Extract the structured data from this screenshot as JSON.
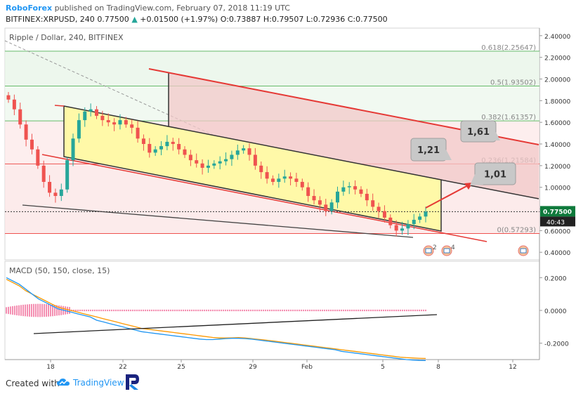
{
  "header": {
    "brand": "RoboForex",
    "published": "published on TradingView.com, February 07, 2018 11:19 UTC",
    "symbol": "BITFINEX:XRPUSD, 240",
    "last": "0.77500",
    "change_arrow": "▲",
    "change": "+0.01500 (+1.97%)",
    "ohlc_o_label": "O:",
    "ohlc_o": "0.73887",
    "ohlc_h_label": "H:",
    "ohlc_h": "0.79507",
    "ohlc_l_label": "L:",
    "ohlc_l": "0.72936",
    "ohlc_c_label": "C:",
    "ohlc_c": "0.77500"
  },
  "colors": {
    "up": "#26a69a",
    "down": "#ef5350",
    "channel_fill": "#fff9a8",
    "channel_outline": "#333333",
    "red_line": "#e53935",
    "fib_green": "#66bb6a",
    "fib_red": "#ef5350",
    "macd_line": "#2196f3",
    "signal_line": "#ff9800",
    "hist": "#e91e63",
    "price_badge": "#0f7a3c",
    "accent": "#2196f3"
  },
  "chart_data": [
    {
      "type": "candlestick",
      "title": "Ripple / Dollar, 240, BITFINEX",
      "ylim": [
        0.33,
        2.47
      ],
      "y_ticks": [
        "2.40000",
        "2.20000",
        "2.00000",
        "1.80000",
        "1.60000",
        "1.40000",
        "1.20000",
        "1.00000",
        "0.80000",
        "0.60000",
        "0.40000"
      ],
      "x_ticks": [
        "18",
        "22",
        "25",
        "29",
        "Feb",
        "5",
        "8",
        "12"
      ],
      "current_price": "0.77500",
      "countdown": "40:43",
      "fib_levels": [
        {
          "label": "0.618(2.25647)",
          "value": 2.25647,
          "color": "green"
        },
        {
          "label": "0.5(1.93502)",
          "value": 1.93502,
          "color": "green"
        },
        {
          "label": "0.382(1.61357)",
          "value": 1.61357,
          "color": "green"
        },
        {
          "label": "0.236(1.21584)",
          "value": 1.21584,
          "color": "red"
        },
        {
          "label": "0(0.57293)",
          "value": 0.57293,
          "color": "red"
        }
      ],
      "targets": [
        "1,61",
        "1,21",
        "1,01"
      ],
      "event_badges": [
        "2",
        "4"
      ],
      "closes": [
        1.81,
        1.72,
        1.58,
        1.44,
        1.35,
        1.2,
        1.05,
        0.95,
        0.92,
        0.98,
        1.25,
        1.45,
        1.62,
        1.7,
        1.72,
        1.66,
        1.62,
        1.6,
        1.58,
        1.62,
        1.58,
        1.55,
        1.45,
        1.4,
        1.32,
        1.35,
        1.38,
        1.42,
        1.4,
        1.35,
        1.3,
        1.25,
        1.22,
        1.18,
        1.2,
        1.22,
        1.24,
        1.26,
        1.3,
        1.34,
        1.36,
        1.3,
        1.2,
        1.14,
        1.08,
        1.05,
        1.08,
        1.1,
        1.08,
        1.05,
        1.0,
        0.92,
        0.88,
        0.84,
        0.78,
        0.86,
        0.96,
        1.0,
        1.01,
        0.98,
        0.94,
        0.88,
        0.82,
        0.78,
        0.72,
        0.65,
        0.6,
        0.62,
        0.66,
        0.7,
        0.73,
        0.775
      ]
    },
    {
      "type": "line",
      "title": "MACD (50, 150, close, 15)",
      "ylim": [
        -0.3,
        0.3
      ],
      "y_ticks": [
        "0.2000",
        "0.0000",
        "-0.2000"
      ],
      "series": [
        {
          "color": "blue",
          "values": [
            0.2,
            0.18,
            0.16,
            0.13,
            0.1,
            0.07,
            0.05,
            0.03,
            0.01,
            0.0,
            -0.01,
            -0.02,
            -0.03,
            -0.04,
            -0.06,
            -0.07,
            -0.08,
            -0.09,
            -0.1,
            -0.11,
            -0.12,
            -0.13,
            -0.135,
            -0.14,
            -0.145,
            -0.15,
            -0.155,
            -0.16,
            -0.165,
            -0.17,
            -0.175,
            -0.178,
            -0.178,
            -0.175,
            -0.172,
            -0.17,
            -0.17,
            -0.172,
            -0.175,
            -0.18,
            -0.185,
            -0.19,
            -0.195,
            -0.2,
            -0.205,
            -0.21,
            -0.215,
            -0.22,
            -0.225,
            -0.23,
            -0.235,
            -0.24,
            -0.25,
            -0.255,
            -0.26,
            -0.265,
            -0.27,
            -0.275,
            -0.28,
            -0.285,
            -0.29,
            -0.295,
            -0.3,
            -0.303,
            -0.305,
            -0.306
          ]
        },
        {
          "color": "orange",
          "values": [
            0.19,
            0.17,
            0.15,
            0.12,
            0.1,
            0.08,
            0.06,
            0.04,
            0.02,
            0.01,
            -0.0,
            -0.01,
            -0.02,
            -0.03,
            -0.04,
            -0.05,
            -0.06,
            -0.07,
            -0.08,
            -0.09,
            -0.1,
            -0.11,
            -0.115,
            -0.12,
            -0.125,
            -0.13,
            -0.135,
            -0.14,
            -0.145,
            -0.15,
            -0.155,
            -0.16,
            -0.165,
            -0.168,
            -0.168,
            -0.167,
            -0.166,
            -0.168,
            -0.172,
            -0.176,
            -0.18,
            -0.185,
            -0.19,
            -0.195,
            -0.2,
            -0.205,
            -0.21,
            -0.215,
            -0.22,
            -0.225,
            -0.23,
            -0.235,
            -0.24,
            -0.245,
            -0.25,
            -0.255,
            -0.26,
            -0.265,
            -0.27,
            -0.275,
            -0.28,
            -0.285,
            -0.288,
            -0.29,
            -0.292,
            -0.293
          ]
        }
      ]
    }
  ],
  "footer": {
    "created_with": "Created with",
    "tradingview": "TradingView"
  }
}
